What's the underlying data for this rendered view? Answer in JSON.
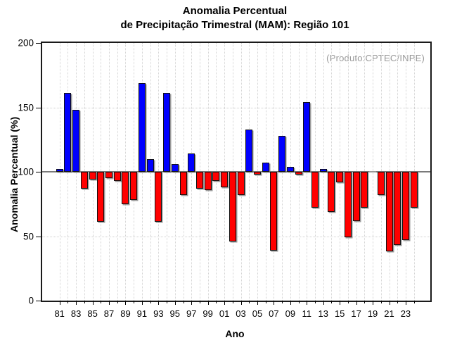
{
  "title": {
    "line1": "Anomalia Percentual",
    "line2": "de Precipitação Trimestral (MAM): Região 101"
  },
  "source_label": "(Produto:CPTEC/INPE)",
  "axes": {
    "x_label": "Ano",
    "y_label": "Anomalia Percentual (%)",
    "y_ticks": [
      0,
      50,
      100,
      150,
      200
    ],
    "gridlines_y": [
      50,
      100,
      150
    ]
  },
  "colors": {
    "above_baseline": "#0000ff",
    "below_baseline": "#ff0000",
    "flat": "#9a9a9a",
    "source_text": "#999999",
    "frame": "#1a1a1a"
  },
  "chart_data": {
    "type": "bar",
    "title": "Anomalia Percentual de Precipitação Trimestral (MAM): Região 101",
    "xlabel": "Ano",
    "ylabel": "Anomalia Percentual (%)",
    "ylim": [
      0,
      200
    ],
    "baseline": 100,
    "grid": true,
    "legend": "none",
    "categories": [
      "81",
      "82",
      "83",
      "84",
      "85",
      "86",
      "87",
      "88",
      "89",
      "90",
      "91",
      "92",
      "93",
      "94",
      "95",
      "96",
      "97",
      "98",
      "99",
      "00",
      "01",
      "02",
      "03",
      "04",
      "05",
      "06",
      "07",
      "08",
      "09",
      "10",
      "11",
      "12",
      "13",
      "14",
      "15",
      "16",
      "17",
      "18",
      "19",
      "20",
      "21",
      "22",
      "23",
      "24"
    ],
    "values": [
      102,
      161,
      148,
      87,
      94,
      61,
      95,
      93,
      75,
      78,
      169,
      110,
      61,
      161,
      106,
      82,
      114,
      87,
      86,
      93,
      88,
      46,
      82,
      133,
      98,
      107,
      39,
      128,
      104,
      98,
      154,
      72,
      102,
      69,
      92,
      49,
      62,
      72,
      100,
      82,
      38,
      43,
      47,
      72
    ],
    "labeled_ticks": [
      "81",
      "83",
      "85",
      "87",
      "89",
      "91",
      "93",
      "95",
      "97",
      "99",
      "01",
      "03",
      "05",
      "07",
      "09",
      "11",
      "13",
      "15",
      "17",
      "19",
      "21",
      "23"
    ]
  }
}
